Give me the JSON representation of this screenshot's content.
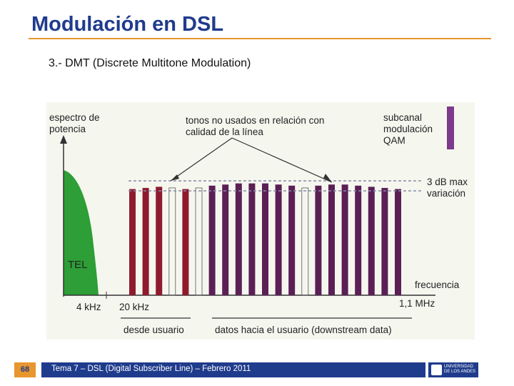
{
  "slide": {
    "title": "Modulación en DSL",
    "subtitle": "3.- DMT (Discrete Multitone Modulation)",
    "page_number": "68",
    "footer": "Tema 7 – DSL (Digital Subscriber Line) – Febrero 2011",
    "logo_text": [
      "UNIVERSIDAD",
      "DE LOS ANDES"
    ]
  },
  "diagram": {
    "labels": {
      "y_axis": "espectro de potencia",
      "x_axis": "frecuencia",
      "unused_tones": "tonos no usados en relación con calidad de la línea",
      "subchannel": "subcanal modulación QAM",
      "variation": "3 dB max variación",
      "tel": "TEL",
      "f_4k": "4 kHz",
      "f_20k": "20 kHz",
      "f_1m": "1,1 MHz",
      "upstream": "desde usuario",
      "downstream": "datos hacia el usuario (downstream data)"
    },
    "colors": {
      "tel_band": "#2e9e36",
      "upstream_bar": "#8f1a2e",
      "downstream_bar": "#5b1f56",
      "subchannel_bar": "#7c3b8c",
      "dashed_line": "#8a8aa6"
    },
    "tones": [
      {
        "group": "upstream",
        "level": 0.94
      },
      {
        "group": "upstream",
        "level": 0.95
      },
      {
        "group": "upstream",
        "level": 0.96
      },
      {
        "group": "upstream",
        "level": 0.0
      },
      {
        "group": "upstream",
        "level": 0.94
      },
      {
        "group": "downstream",
        "level": 0.0
      },
      {
        "group": "downstream",
        "level": 0.97
      },
      {
        "group": "downstream",
        "level": 0.98
      },
      {
        "group": "downstream",
        "level": 0.99
      },
      {
        "group": "downstream",
        "level": 0.99
      },
      {
        "group": "downstream",
        "level": 0.99
      },
      {
        "group": "downstream",
        "level": 0.98
      },
      {
        "group": "downstream",
        "level": 0.97
      },
      {
        "group": "downstream",
        "level": 0.0
      },
      {
        "group": "downstream",
        "level": 0.97
      },
      {
        "group": "downstream",
        "level": 0.98
      },
      {
        "group": "downstream",
        "level": 0.98
      },
      {
        "group": "downstream",
        "level": 0.97
      },
      {
        "group": "downstream",
        "level": 0.96
      },
      {
        "group": "downstream",
        "level": 0.95
      },
      {
        "group": "downstream",
        "level": 0.94
      }
    ]
  }
}
